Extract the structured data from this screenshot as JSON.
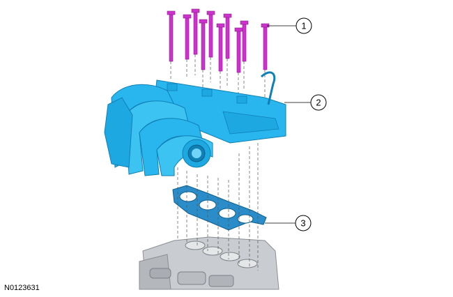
{
  "figure": {
    "id_label": "N0123631"
  },
  "callouts": [
    {
      "number": "1",
      "part": "bolt"
    },
    {
      "number": "2",
      "part": "intake-manifold"
    },
    {
      "number": "3",
      "part": "gasket"
    }
  ],
  "colors": {
    "bolt": "#cc33cc",
    "manifold": "#29b6ee",
    "manifold_dark": "#0f7fb5",
    "gasket": "#2a8cc8",
    "engine_block": "#c9ccd0",
    "guide_line": "#555555"
  }
}
